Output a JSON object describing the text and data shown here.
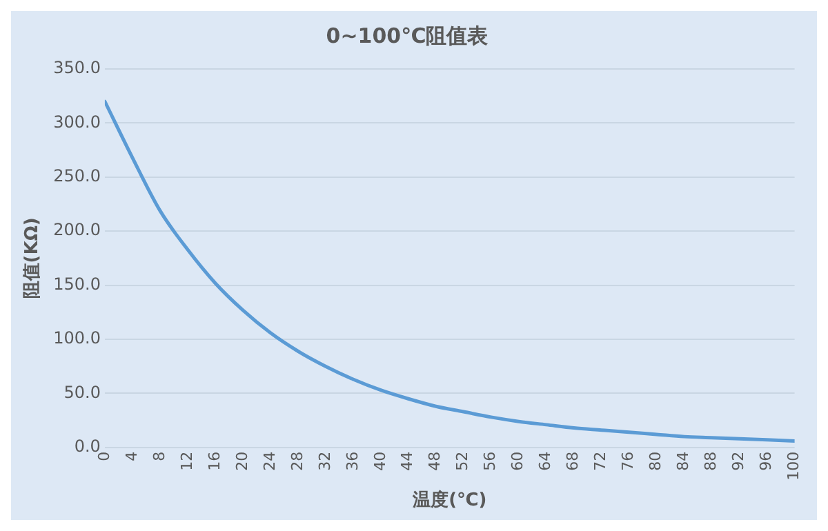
{
  "chart_data": {
    "type": "line",
    "title": "0~100℃阻值表",
    "xlabel": "温度(℃)",
    "ylabel": "阻值(KΩ)",
    "x": [
      0,
      4,
      8,
      12,
      16,
      20,
      24,
      28,
      32,
      36,
      40,
      44,
      48,
      52,
      56,
      60,
      64,
      68,
      72,
      76,
      80,
      84,
      88,
      92,
      96,
      100
    ],
    "series": [
      {
        "color": "#5b9bd5",
        "values": [
          320,
          268,
          219,
          183,
          152,
          127,
          106,
          89,
          75,
          63,
          53,
          45,
          38,
          33,
          28,
          24,
          21,
          18,
          16,
          14,
          12,
          10,
          9,
          8,
          7,
          6
        ]
      }
    ],
    "xlim": [
      0,
      100
    ],
    "xticks": [
      0,
      4,
      8,
      12,
      16,
      20,
      24,
      28,
      32,
      36,
      40,
      44,
      48,
      52,
      56,
      60,
      64,
      68,
      72,
      76,
      80,
      84,
      88,
      92,
      96,
      100
    ],
    "ylim": [
      0,
      350
    ],
    "yticks": [
      {
        "value": 0,
        "label": "0.0"
      },
      {
        "value": 50,
        "label": "50.0"
      },
      {
        "value": 100,
        "label": "100.0"
      },
      {
        "value": 150,
        "label": "150.0"
      },
      {
        "value": 200,
        "label": "200.0"
      },
      {
        "value": 250,
        "label": "250.0"
      },
      {
        "value": 300,
        "label": "300.0"
      },
      {
        "value": 350,
        "label": "350.0"
      }
    ],
    "grid": "y",
    "legend": false,
    "marker": "none",
    "line_style": "solid"
  }
}
